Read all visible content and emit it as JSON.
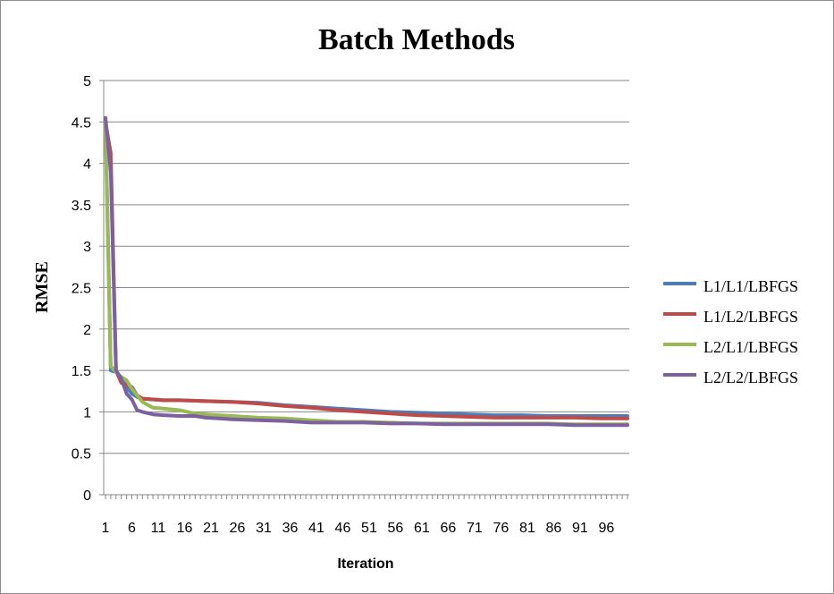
{
  "chart_data": {
    "type": "line",
    "title": "Batch Methods",
    "xlabel": "Iteration",
    "ylabel": "RMSE",
    "xlim": [
      1,
      100
    ],
    "ylim": [
      0,
      5
    ],
    "yticks": [
      "0",
      "0.5",
      "1",
      "1.5",
      "2",
      "2.5",
      "3",
      "3.5",
      "4",
      "4.5",
      "5"
    ],
    "xticks": [
      "1",
      "6",
      "11",
      "16",
      "21",
      "26",
      "31",
      "36",
      "41",
      "46",
      "51",
      "56",
      "61",
      "66",
      "71",
      "76",
      "81",
      "86",
      "91",
      "96"
    ],
    "grid": "horizontal",
    "legend_position": "right",
    "series": [
      {
        "name": "L1/L1/LBFGS",
        "color": "#4a7ebb",
        "points": [
          [
            1,
            4.5
          ],
          [
            2,
            1.5
          ],
          [
            3,
            1.48
          ],
          [
            4,
            1.4
          ],
          [
            5,
            1.3
          ],
          [
            6,
            1.22
          ],
          [
            7,
            1.18
          ],
          [
            8,
            1.16
          ],
          [
            10,
            1.15
          ],
          [
            12,
            1.14
          ],
          [
            15,
            1.14
          ],
          [
            20,
            1.13
          ],
          [
            25,
            1.12
          ],
          [
            30,
            1.11
          ],
          [
            35,
            1.08
          ],
          [
            40,
            1.06
          ],
          [
            45,
            1.04
          ],
          [
            50,
            1.02
          ],
          [
            55,
            1.0
          ],
          [
            60,
            0.99
          ],
          [
            65,
            0.98
          ],
          [
            70,
            0.97
          ],
          [
            75,
            0.96
          ],
          [
            80,
            0.96
          ],
          [
            85,
            0.95
          ],
          [
            90,
            0.95
          ],
          [
            95,
            0.95
          ],
          [
            100,
            0.95
          ]
        ]
      },
      {
        "name": "L1/L2/LBFGS",
        "color": "#be4b48",
        "points": [
          [
            1,
            4.5
          ],
          [
            2,
            4.12
          ],
          [
            3,
            1.5
          ],
          [
            4,
            1.35
          ],
          [
            5,
            1.33
          ],
          [
            6,
            1.3
          ],
          [
            7,
            1.2
          ],
          [
            8,
            1.16
          ],
          [
            10,
            1.15
          ],
          [
            12,
            1.14
          ],
          [
            15,
            1.14
          ],
          [
            20,
            1.13
          ],
          [
            25,
            1.12
          ],
          [
            30,
            1.1
          ],
          [
            35,
            1.07
          ],
          [
            40,
            1.05
          ],
          [
            45,
            1.02
          ],
          [
            50,
            1.0
          ],
          [
            55,
            0.98
          ],
          [
            60,
            0.96
          ],
          [
            65,
            0.95
          ],
          [
            70,
            0.94
          ],
          [
            75,
            0.93
          ],
          [
            80,
            0.93
          ],
          [
            85,
            0.93
          ],
          [
            90,
            0.93
          ],
          [
            95,
            0.92
          ],
          [
            100,
            0.92
          ]
        ]
      },
      {
        "name": "L2/L1/LBFGS",
        "color": "#98b954",
        "points": [
          [
            1,
            4.5
          ],
          [
            2,
            1.55
          ],
          [
            3,
            1.48
          ],
          [
            4,
            1.42
          ],
          [
            5,
            1.38
          ],
          [
            6,
            1.28
          ],
          [
            7,
            1.2
          ],
          [
            8,
            1.12
          ],
          [
            10,
            1.05
          ],
          [
            12,
            1.04
          ],
          [
            15,
            1.02
          ],
          [
            18,
            0.98
          ],
          [
            20,
            0.97
          ],
          [
            25,
            0.95
          ],
          [
            30,
            0.93
          ],
          [
            35,
            0.92
          ],
          [
            40,
            0.9
          ],
          [
            45,
            0.88
          ],
          [
            50,
            0.88
          ],
          [
            55,
            0.87
          ],
          [
            60,
            0.86
          ],
          [
            65,
            0.86
          ],
          [
            70,
            0.86
          ],
          [
            75,
            0.86
          ],
          [
            80,
            0.86
          ],
          [
            85,
            0.86
          ],
          [
            90,
            0.85
          ],
          [
            95,
            0.85
          ],
          [
            100,
            0.85
          ]
        ]
      },
      {
        "name": "L2/L2/LBFGS",
        "color": "#7d60a0",
        "points": [
          [
            1,
            4.55
          ],
          [
            2,
            3.9
          ],
          [
            3,
            1.5
          ],
          [
            4,
            1.4
          ],
          [
            5,
            1.22
          ],
          [
            6,
            1.15
          ],
          [
            7,
            1.02
          ],
          [
            8,
            1.0
          ],
          [
            10,
            0.97
          ],
          [
            12,
            0.96
          ],
          [
            15,
            0.95
          ],
          [
            18,
            0.95
          ],
          [
            20,
            0.93
          ],
          [
            25,
            0.91
          ],
          [
            30,
            0.9
          ],
          [
            35,
            0.89
          ],
          [
            40,
            0.87
          ],
          [
            45,
            0.87
          ],
          [
            50,
            0.87
          ],
          [
            55,
            0.86
          ],
          [
            60,
            0.86
          ],
          [
            65,
            0.85
          ],
          [
            70,
            0.85
          ],
          [
            75,
            0.85
          ],
          [
            80,
            0.85
          ],
          [
            85,
            0.85
          ],
          [
            90,
            0.84
          ],
          [
            95,
            0.84
          ],
          [
            100,
            0.84
          ]
        ]
      }
    ]
  }
}
